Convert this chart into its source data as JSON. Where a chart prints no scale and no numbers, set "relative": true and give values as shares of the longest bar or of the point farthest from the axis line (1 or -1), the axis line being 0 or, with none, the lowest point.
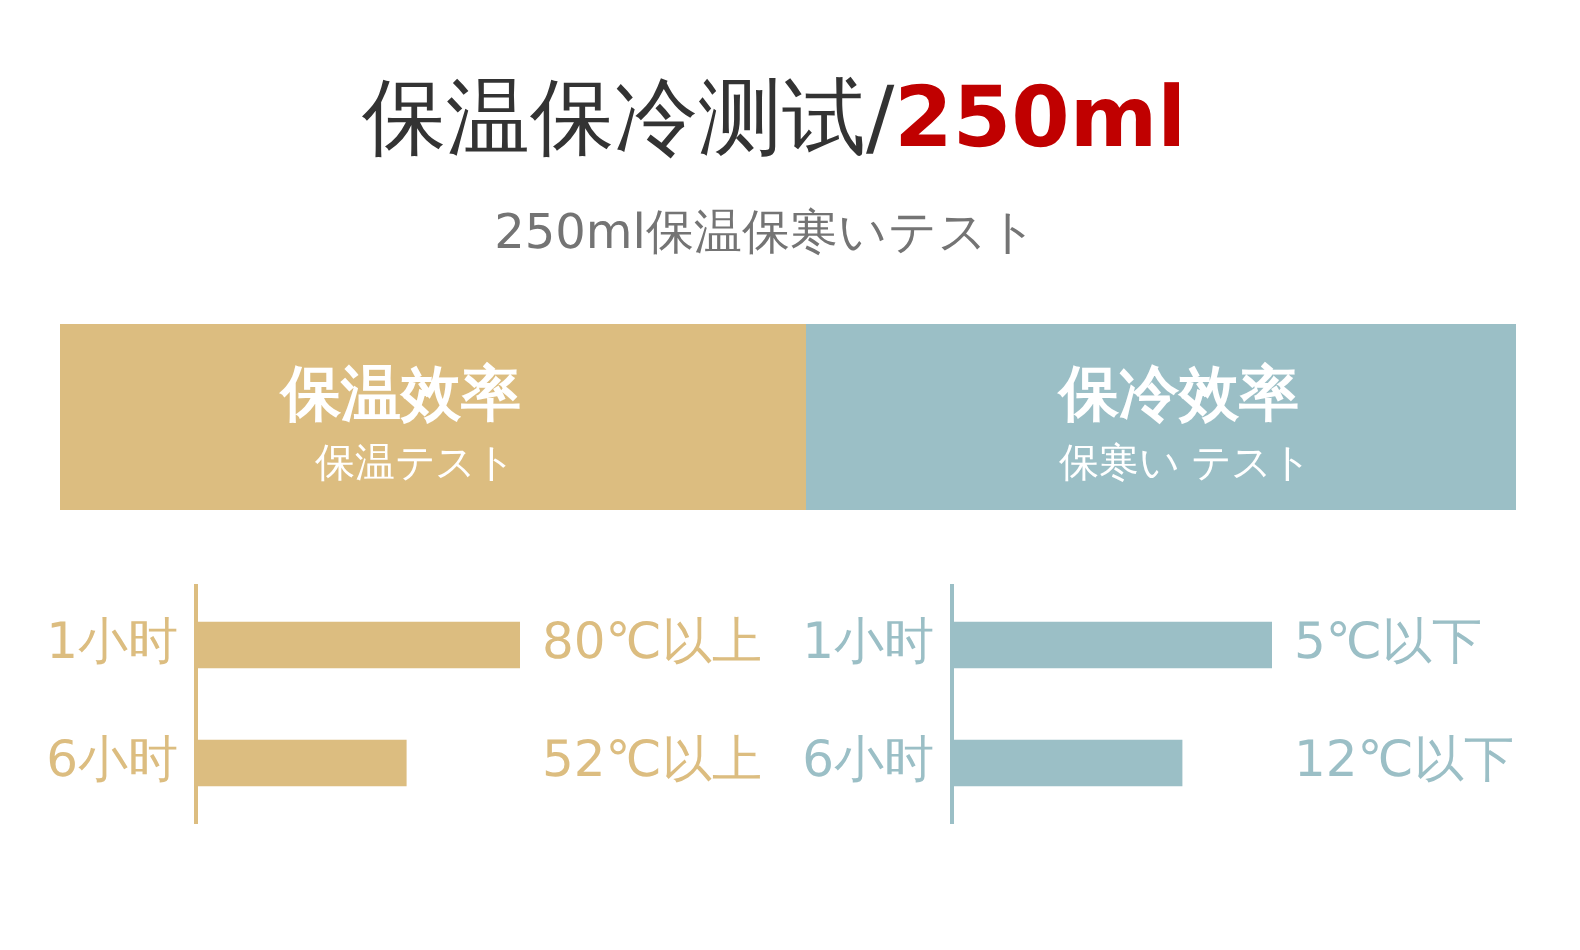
{
  "chart_data": [
    {
      "type": "other",
      "title": "保温保冷测试/250ml",
      "subtitle": "250ml保温保寒いテスト"
    },
    {
      "type": "bar",
      "title": "保温效率",
      "subtitle": "保温テスト",
      "orientation": "horizontal",
      "categories": [
        "1小时",
        "6小时"
      ],
      "values": [
        80,
        52
      ],
      "value_labels": [
        "80℃以上",
        "52℃以上"
      ],
      "color": "#dcbd80",
      "xlim": [
        0,
        80
      ],
      "tick_labels": "y"
    },
    {
      "type": "bar",
      "title": "保冷效率",
      "subtitle": "保寒い テスト",
      "orientation": "horizontal",
      "relative": true,
      "categories": [
        "1小时",
        "6小时"
      ],
      "values": [
        1,
        0.72
      ],
      "annotations": [
        "5℃以下",
        "12℃以下"
      ],
      "color": "#9bbfc6",
      "tick_labels": "y"
    }
  ]
}
